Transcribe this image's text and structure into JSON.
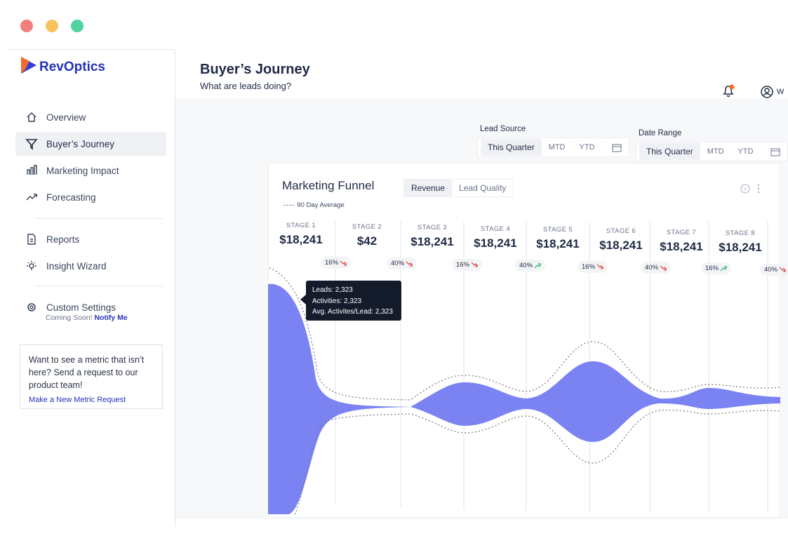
{
  "sidebar": {
    "brand": "RevOptics",
    "nav": [
      "Overview",
      "Buyer’s Journey",
      "Marketing Impact",
      "Forecasting"
    ],
    "active": 1,
    "tools": [
      "Reports",
      "Insight Wizard"
    ],
    "settings": {
      "label": "Custom Settings",
      "note": "Coming Soon!",
      "link": "Notify Me"
    },
    "card": {
      "text": "Want to see a metric that isn’t here? Send a request to our product team!",
      "link": "Make a New Metric Request"
    }
  },
  "header": {
    "title": "Buyer’s Journey",
    "subtitle": "What are leads doing?",
    "user": "W"
  },
  "filters": [
    {
      "label": "Lead Source",
      "options": [
        "This Quarter",
        "MTD",
        "YTD"
      ]
    },
    {
      "label": "Date Range",
      "options": [
        "This Quarter",
        "MTD",
        "YTD"
      ]
    }
  ],
  "panel": {
    "title": "Marketing Funnel",
    "tabs": [
      "Revenue",
      "Lead Quality"
    ],
    "legend": "90 Day Average",
    "stages": [
      {
        "label": "STAGE 1",
        "value": "$18,241"
      },
      {
        "label": "STAGE 2",
        "value": "$42"
      },
      {
        "label": "STAGE 3",
        "value": "$18,241"
      },
      {
        "label": "STAGE 4",
        "value": "$18,241"
      },
      {
        "label": "STAGE 5",
        "value": "$18,241"
      },
      {
        "label": "STAGE 6",
        "value": "$18,241"
      },
      {
        "label": "STAGE 7",
        "value": "$18,241"
      },
      {
        "label": "STAGE 8",
        "value": "$18,241"
      }
    ],
    "rates": [
      {
        "text": "16%",
        "trend": "down"
      },
      {
        "text": "40%",
        "trend": "down"
      },
      {
        "text": "16%",
        "trend": "down"
      },
      {
        "text": "40%",
        "trend": "up"
      },
      {
        "text": "16%",
        "trend": "down"
      },
      {
        "text": "40%",
        "trend": "down"
      },
      {
        "text": "16%",
        "trend": "up"
      },
      {
        "text": "40%",
        "trend": "down"
      }
    ],
    "tooltip": [
      "Leads: 2,323",
      "Activities: 2,323",
      "Avg. Activites/Lead: 2,323"
    ]
  }
}
